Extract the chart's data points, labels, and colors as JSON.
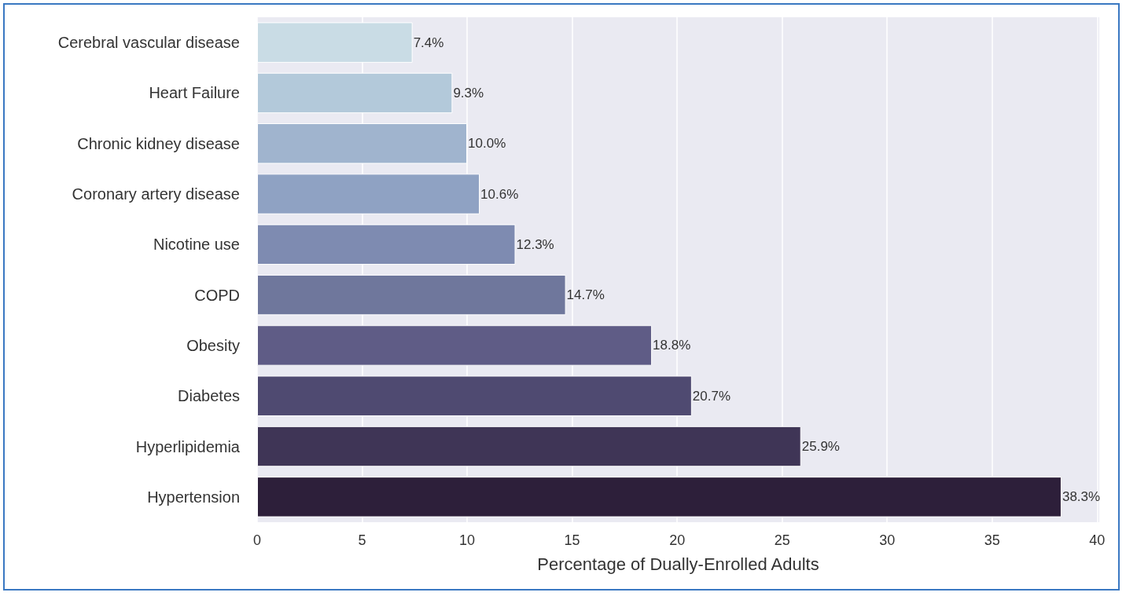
{
  "chart_data": {
    "type": "bar",
    "orientation": "horizontal",
    "xlabel": "Percentage of Dually-Enrolled Adults",
    "categories": [
      "Cerebral vascular disease",
      "Heart Failure",
      "Chronic kidney disease",
      "Coronary artery disease",
      "Nicotine use",
      "COPD",
      "Obesity",
      "Diabetes",
      "Hyperlipidemia",
      "Hypertension"
    ],
    "values": [
      7.4,
      9.3,
      10.0,
      10.6,
      12.3,
      14.7,
      18.8,
      20.7,
      25.9,
      38.3
    ],
    "value_labels": [
      "7.4%",
      "9.3%",
      "10.0%",
      "10.6%",
      "12.3%",
      "14.7%",
      "18.8%",
      "20.7%",
      "25.9%",
      "38.3%"
    ],
    "colors": [
      "#c9dce5",
      "#b3c9da",
      "#a0b4ce",
      "#8fa2c3",
      "#7e8bb1",
      "#6f779c",
      "#5f5c86",
      "#4f4a71",
      "#3f3556",
      "#2d1f3a"
    ],
    "xlim": [
      0,
      40.1
    ],
    "xticks": [
      0,
      5,
      10,
      15,
      20,
      25,
      30,
      35,
      40
    ],
    "grid": "x"
  }
}
